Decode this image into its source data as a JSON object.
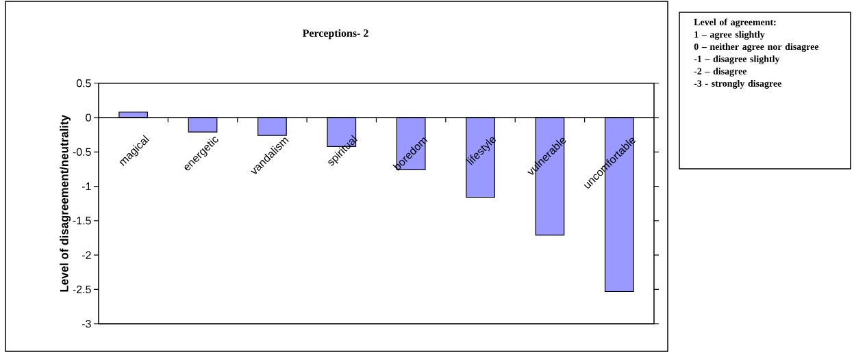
{
  "chart_data": {
    "type": "bar",
    "title": "Perceptions- 2",
    "ylabel": "Level of disagreement/neutrality",
    "categories": [
      "magical",
      "energetic",
      "vandalism",
      "spiritual",
      "boredom",
      "lifestyle",
      "vulnerable",
      "uncomfortable"
    ],
    "values": [
      0.08,
      -0.21,
      -0.26,
      -0.42,
      -0.76,
      -1.16,
      -1.71,
      -2.53
    ],
    "color": "#9999ff",
    "ylim": [
      -3,
      0.5
    ],
    "yticks": [
      -3,
      -2.5,
      -2,
      -1.5,
      -1,
      -0.5,
      0,
      0.5
    ],
    "grid": false,
    "annotations": [
      "Level of agreement:",
      "1 – agree slightly",
      "0 – neither agree nor disagree",
      "-1 – disagree slightly",
      "-2 – disagree",
      "-3 - strongly disagree"
    ]
  }
}
